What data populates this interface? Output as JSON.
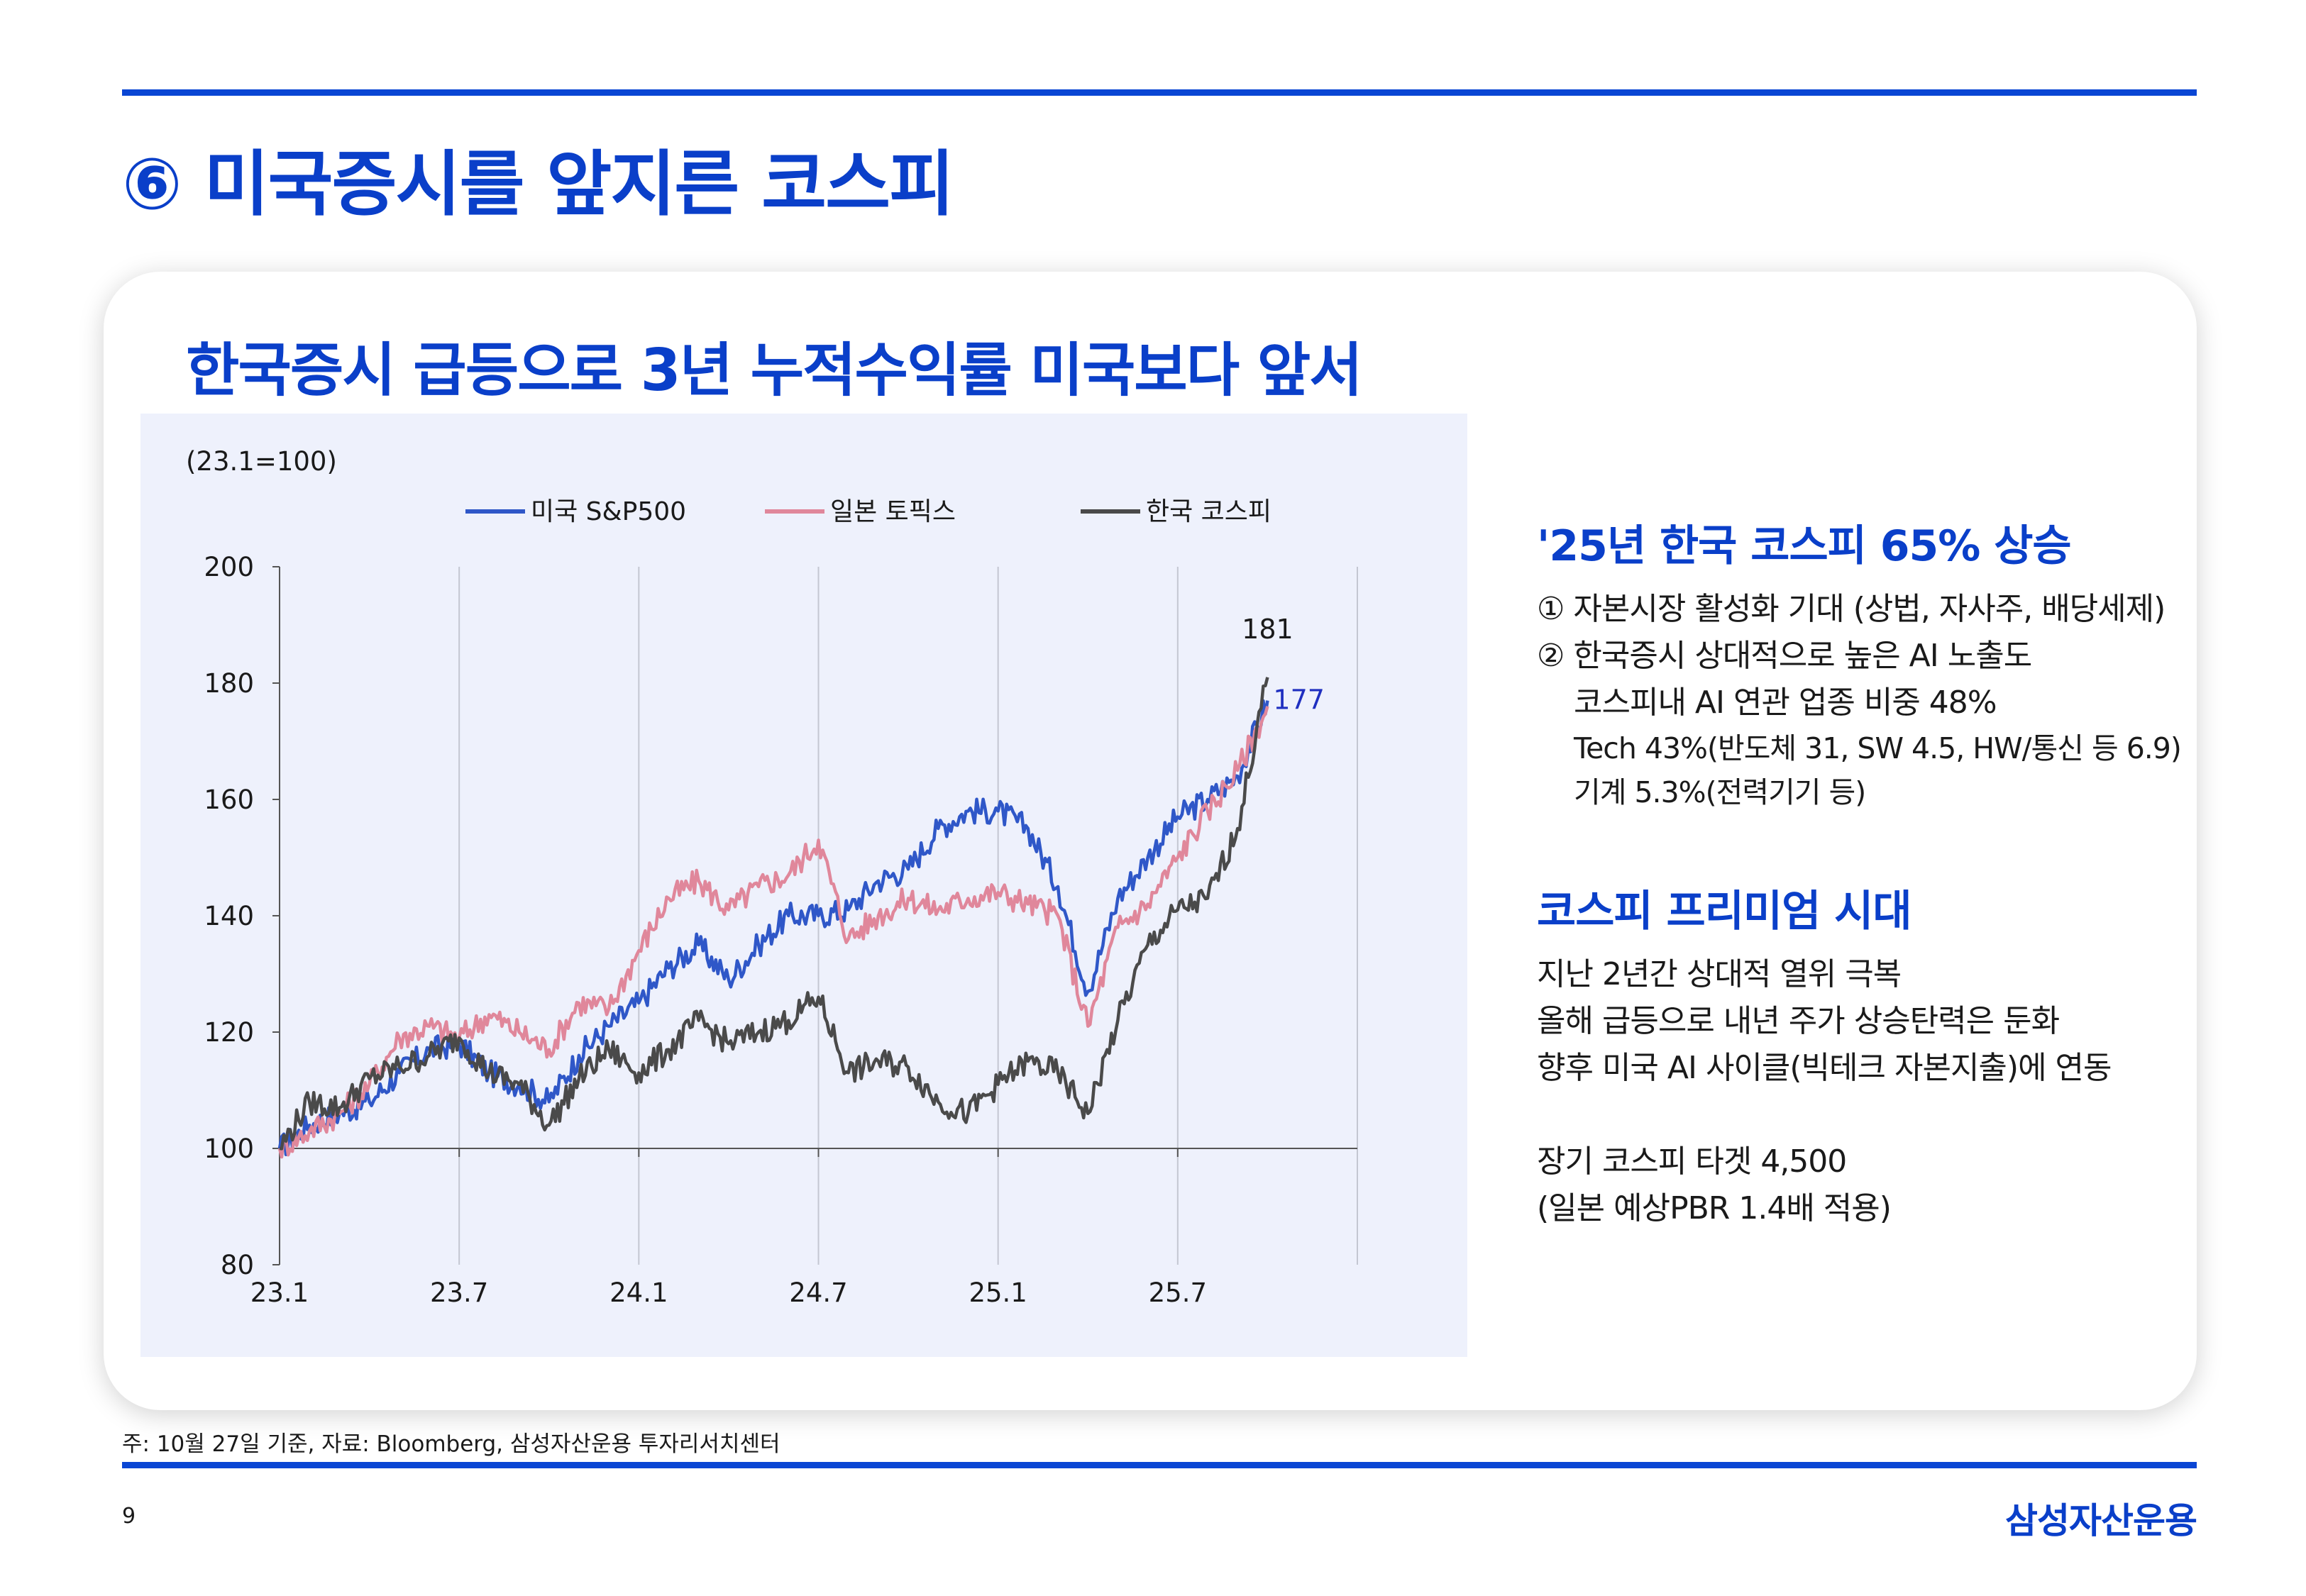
{
  "header": {
    "title": "⑥ 미국증시를 앞지른 코스피"
  },
  "card": {
    "title": "한국증시 급등으로 3년 누적수익률 미국보다 앞서"
  },
  "chart_data": {
    "type": "line",
    "unit_note": "(23.1=100)",
    "x_tick_labels": [
      "23.1",
      "23.7",
      "24.1",
      "24.7",
      "25.1",
      "25.7"
    ],
    "ylim": [
      80,
      200
    ],
    "y_ticks": [
      80,
      100,
      120,
      140,
      160,
      180,
      200
    ],
    "grid": "vertical",
    "legend_position": "top",
    "series": [
      {
        "name": "미국 S&P500",
        "color": "#2f57c8",
        "end_label": "177",
        "x": [
          "2023-01",
          "2023-02",
          "2023-03",
          "2023-04",
          "2023-05",
          "2023-06",
          "2023-07",
          "2023-08",
          "2023-09",
          "2023-10",
          "2023-11",
          "2023-12",
          "2024-01",
          "2024-02",
          "2024-03",
          "2024-04",
          "2024-05",
          "2024-06",
          "2024-07",
          "2024-08",
          "2024-09",
          "2024-10",
          "2024-11",
          "2024-12",
          "2025-01",
          "2025-02",
          "2025-03",
          "2025-04",
          "2025-05",
          "2025-06",
          "2025-07",
          "2025-08",
          "2025-09",
          "2025-10"
        ],
        "values": [
          100,
          104,
          106,
          108,
          113,
          117,
          118,
          113,
          111,
          108,
          116,
          121,
          125,
          131,
          135,
          129,
          135,
          140,
          140,
          141,
          146,
          148,
          155,
          158,
          158,
          155,
          145,
          127,
          143,
          150,
          157,
          160,
          164,
          177
        ]
      },
      {
        "name": "일본 토픽스",
        "color": "#e0879b",
        "end_label": "",
        "x": [
          "2023-01",
          "2023-02",
          "2023-03",
          "2023-04",
          "2023-05",
          "2023-06",
          "2023-07",
          "2023-08",
          "2023-09",
          "2023-10",
          "2023-11",
          "2023-12",
          "2024-01",
          "2024-02",
          "2024-03",
          "2024-04",
          "2024-05",
          "2024-06",
          "2024-07",
          "2024-08",
          "2024-09",
          "2024-10",
          "2024-11",
          "2024-12",
          "2025-01",
          "2025-02",
          "2025-03",
          "2025-04",
          "2025-05",
          "2025-06",
          "2025-07",
          "2025-08",
          "2025-09",
          "2025-10"
        ],
        "values": [
          100,
          103,
          106,
          111,
          119,
          121,
          119,
          123,
          120,
          117,
          125,
          124,
          134,
          143,
          146,
          141,
          145,
          147,
          153,
          136,
          140,
          143,
          141,
          143,
          144,
          142,
          140,
          121,
          138,
          142,
          150,
          158,
          165,
          176
        ]
      },
      {
        "name": "한국 코스피",
        "color": "#4a4a4a",
        "end_label": "181",
        "x": [
          "2023-01",
          "2023-02",
          "2023-03",
          "2023-04",
          "2023-05",
          "2023-06",
          "2023-07",
          "2023-08",
          "2023-09",
          "2023-10",
          "2023-11",
          "2023-12",
          "2024-01",
          "2024-02",
          "2024-03",
          "2024-04",
          "2024-05",
          "2024-06",
          "2024-07",
          "2024-08",
          "2024-09",
          "2024-10",
          "2024-11",
          "2024-12",
          "2025-01",
          "2025-02",
          "2025-03",
          "2025-04",
          "2025-05",
          "2025-06",
          "2025-07",
          "2025-08",
          "2025-09",
          "2025-10"
        ],
        "values": [
          100,
          108,
          107,
          112,
          114,
          116,
          119,
          113,
          111,
          104,
          112,
          117,
          113,
          117,
          122,
          118,
          120,
          122,
          126,
          113,
          115,
          114,
          108,
          106,
          111,
          115,
          113,
          106,
          122,
          135,
          141,
          143,
          155,
          181
        ]
      }
    ]
  },
  "sections": [
    {
      "title": "'25년 한국 코스피 65% 상승",
      "lines": [
        {
          "text": "① 자본시장 활성화 기대 (상법, 자사주, 배당세제)",
          "level": 0
        },
        {
          "text": "② 한국증시 상대적으로 높은 AI 노출도",
          "level": 0
        },
        {
          "text": "코스피내 AI 연관 업종 비중 48%",
          "level": 1
        },
        {
          "text": "Tech 43%(반도체 31, SW 4.5, HW/통신 등 6.9)",
          "level": 2
        },
        {
          "text": "기계 5.3%(전력기기 등)",
          "level": 2
        }
      ]
    },
    {
      "title": "코스피 프리미엄 시대",
      "lines": [
        {
          "text": "지난 2년간 상대적 열위 극복",
          "level": 0
        },
        {
          "text": "올해 급등으로 내년 주가 상승탄력은 둔화",
          "level": 0
        },
        {
          "text": "향후 미국 AI 사이클(빅테크 자본지출)에 연동",
          "level": 0
        },
        {
          "text": "",
          "level": 0
        },
        {
          "text": "장기 코스피 타겟 4,500",
          "level": 0
        },
        {
          "text": "(일본 예상PBR 1.4배 적용)",
          "level": 0
        }
      ]
    }
  ],
  "footer": {
    "note": "주: 10월 27일 기준, 자료: Bloomberg, 삼성자산운용 투자리서치센터",
    "page_number": "9",
    "brand": "삼성자산운용"
  },
  "colors": {
    "accent": "#0a3fc9",
    "rule": "#0a46d4",
    "chart_bg": "#eef1fc"
  }
}
